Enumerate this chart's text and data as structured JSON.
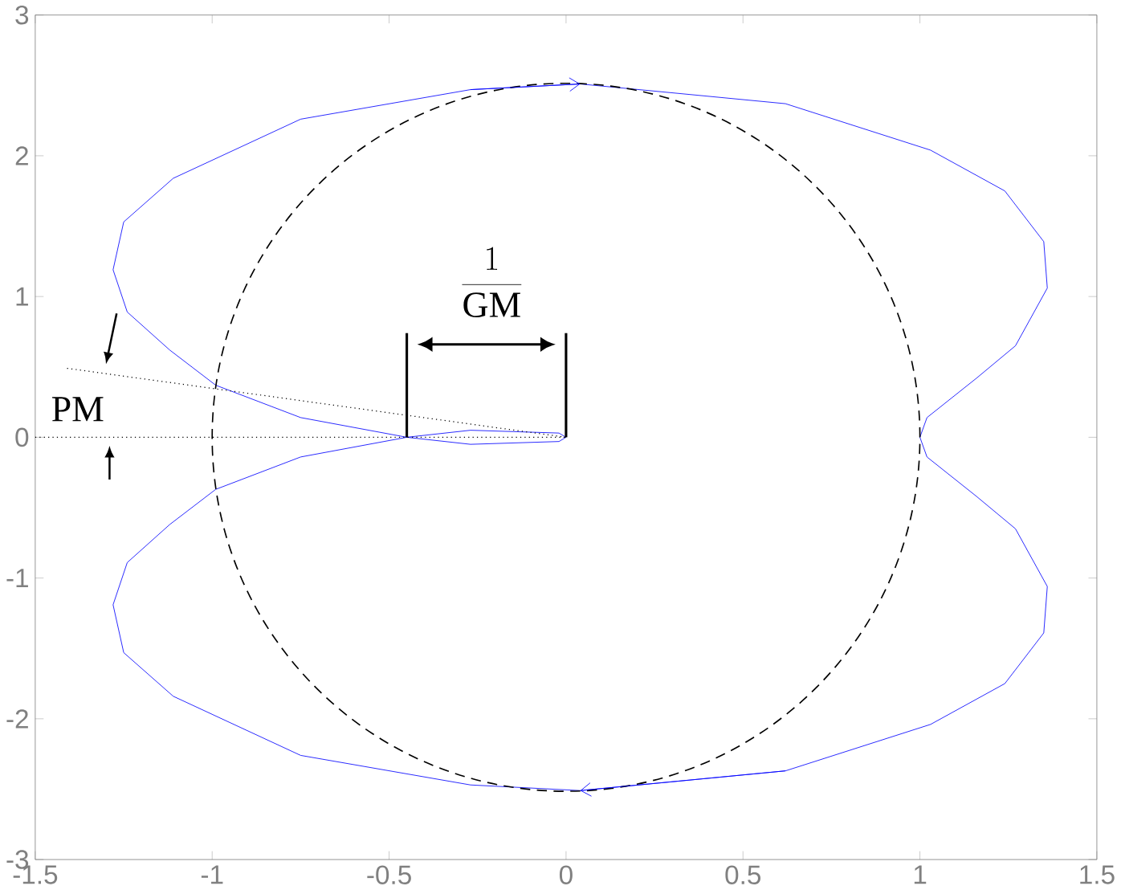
{
  "chart_data": {
    "type": "line",
    "xlim": [
      -1.5,
      1.5
    ],
    "ylim": [
      -3,
      3
    ],
    "xticks": [
      -1.5,
      -1,
      -0.5,
      0,
      0.5,
      1,
      1.5
    ],
    "yticks": [
      -3,
      -2,
      -1,
      0,
      1,
      2,
      3
    ],
    "marker": "none",
    "series": [
      {
        "color": "#0000ff",
        "line_style": "solid",
        "x": [
          0,
          -0.02,
          -0.27,
          -0.45,
          -0.75,
          -0.99,
          -1.12,
          -1.24,
          -1.28
        ],
        "values": [
          0,
          0.03,
          0.05,
          0,
          0.14,
          0.37,
          0.62,
          0.89,
          1.19
        ]
      },
      {
        "color": "#0000ff",
        "line_style": "solid",
        "x": [
          -1.28,
          -1.25,
          -1.11,
          -0.75,
          -0.27,
          0.04,
          0.62,
          1.03,
          1.24,
          1.35,
          1.36
        ],
        "values": [
          1.19,
          1.53,
          1.84,
          2.26,
          2.47,
          2.51,
          2.37,
          2.04,
          1.75,
          1.39,
          1.06
        ]
      },
      {
        "color": "#0000ff",
        "line_style": "solid",
        "x": [
          1.36,
          1.27,
          1.16,
          1.02,
          1.0
        ],
        "values": [
          1.06,
          0.65,
          0.42,
          0.14,
          0
        ]
      },
      {
        "color": "#0000ff",
        "line_style": "solid",
        "x": [
          1.0,
          1.02,
          1.16,
          1.27,
          1.36
        ],
        "values": [
          0,
          -0.14,
          -0.42,
          -0.65,
          -1.06
        ]
      },
      {
        "color": "#0000ff",
        "line_style": "solid",
        "x": [
          1.36,
          1.35,
          1.24,
          1.03,
          0.62,
          0.04,
          -0.27,
          -0.75,
          -1.11,
          -1.25,
          -1.28
        ],
        "values": [
          -1.06,
          -1.39,
          -1.75,
          -2.04,
          -2.37,
          -2.51,
          -2.47,
          -2.26,
          -1.84,
          -1.53,
          -1.19
        ]
      },
      {
        "color": "#0000ff",
        "line_style": "solid",
        "x": [
          -1.28,
          -1.24,
          -1.12,
          -0.99,
          -0.75,
          -0.45,
          -0.27,
          -0.02,
          0
        ],
        "values": [
          -1.19,
          -0.89,
          -0.62,
          -0.37,
          -0.14,
          0,
          -0.05,
          -0.03,
          0
        ]
      },
      {
        "color": "#000000",
        "line_style": "dotted",
        "x": [
          -1.5,
          0
        ],
        "values": [
          0,
          0
        ]
      },
      {
        "color": "#000000",
        "line_style": "dotted",
        "x": [
          -1.41,
          0
        ],
        "values": [
          0.49,
          0
        ]
      }
    ],
    "annotations": [
      "\\frac{1}{\\mathrm{GM}}",
      "PM"
    ]
  }
}
